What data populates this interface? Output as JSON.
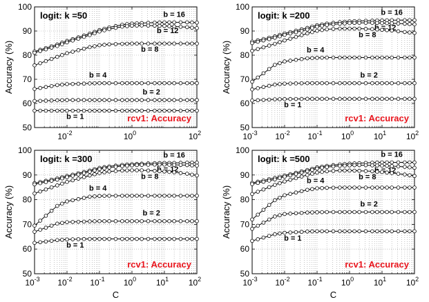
{
  "chart_data": [
    {
      "type": "line",
      "title": "logit: k =50",
      "annotation": "rcv1: Accuracy",
      "ylabel": "Accuracy (%)",
      "xlabel": "",
      "xscale": "log",
      "xlim": [
        0.001,
        100
      ],
      "ylim": [
        50,
        100
      ],
      "grid": true,
      "x_ticks": [
        "10^-2",
        "10^0",
        "10^2"
      ],
      "y_ticks": [
        "50",
        "60",
        "70",
        "80",
        "90",
        "100"
      ],
      "x": [
        0.001,
        0.005,
        0.01,
        0.05,
        0.1,
        0.2,
        0.5,
        1,
        2,
        5,
        10,
        20,
        50,
        100
      ],
      "series": [
        {
          "name": "b = 16",
          "values": [
            81.5,
            84.4,
            85.9,
            88.9,
            90.4,
            91.5,
            92.6,
            93.1,
            93.3,
            93.5,
            93.6,
            93.6,
            93.6,
            93.5
          ]
        },
        {
          "name": "b = 12",
          "values": [
            81.0,
            83.8,
            85.3,
            88.3,
            89.8,
            90.8,
            91.8,
            92.2,
            92.3,
            92.2,
            92.1,
            91.9,
            91.6,
            91.2
          ]
        },
        {
          "name": "b = 8",
          "values": [
            75.8,
            79.3,
            80.8,
            83.3,
            84.1,
            84.5,
            84.7,
            84.8,
            84.8,
            84.8,
            84.8,
            84.8,
            84.8,
            84.8
          ]
        },
        {
          "name": "b = 4",
          "values": [
            66.0,
            67.6,
            68.0,
            68.3,
            68.4,
            68.4,
            68.4,
            68.4,
            68.4,
            68.4,
            68.4,
            68.4,
            68.4,
            68.4
          ]
        },
        {
          "name": "b = 2",
          "values": [
            61.0,
            61.3,
            61.4,
            61.4,
            61.4,
            61.4,
            61.4,
            61.4,
            61.4,
            61.4,
            61.4,
            61.4,
            61.4,
            61.4
          ]
        },
        {
          "name": "b = 1",
          "values": [
            57.0,
            57.0,
            57.0,
            57.0,
            57.0,
            57.0,
            57.0,
            57.0,
            57.0,
            57.0,
            57.0,
            57.0,
            57.0,
            57.0
          ]
        }
      ]
    },
    {
      "type": "line",
      "title": "logit: k =200",
      "annotation": "rcv1: Accuracy",
      "ylabel": "",
      "xlabel": "",
      "xscale": "log",
      "xlim": [
        0.001,
        100
      ],
      "ylim": [
        50,
        100
      ],
      "grid": true,
      "x_ticks": [
        "10^-3",
        "10^-2",
        "10^-1",
        "10^0",
        "10^1",
        "10^2"
      ],
      "y_ticks": [
        "50",
        "60",
        "70",
        "80",
        "90",
        "100"
      ],
      "x": [
        0.001,
        0.005,
        0.01,
        0.05,
        0.1,
        0.2,
        0.5,
        1,
        2,
        5,
        10,
        20,
        50,
        100
      ],
      "series": [
        {
          "name": "b = 16",
          "values": [
            85.6,
            87.8,
            89.0,
            91.3,
            92.4,
            93.1,
            93.7,
            94.0,
            94.2,
            94.3,
            94.4,
            94.5,
            94.5,
            94.5
          ]
        },
        {
          "name": "b = 12",
          "values": [
            85.0,
            87.2,
            88.4,
            90.6,
            91.8,
            92.5,
            93.0,
            93.3,
            93.4,
            93.4,
            93.3,
            93.2,
            93.0,
            92.8
          ]
        },
        {
          "name": "b = 8",
          "values": [
            81.8,
            84.7,
            86.1,
            89.0,
            90.1,
            90.7,
            91.0,
            91.0,
            91.0,
            90.8,
            90.5,
            90.2,
            89.6,
            89.2
          ]
        },
        {
          "name": "b = 4",
          "values": [
            69.0,
            76.0,
            77.4,
            78.7,
            78.9,
            79.0,
            79.0,
            79.0,
            79.0,
            79.0,
            79.0,
            79.0,
            79.0,
            79.0
          ]
        },
        {
          "name": "b = 2",
          "values": [
            65.8,
            67.8,
            68.2,
            68.4,
            68.4,
            68.4,
            68.4,
            68.4,
            68.4,
            68.4,
            68.4,
            68.4,
            68.4,
            68.4
          ]
        },
        {
          "name": "b = 1",
          "values": [
            61.2,
            61.7,
            61.8,
            61.9,
            61.9,
            61.9,
            61.9,
            61.9,
            61.9,
            61.9,
            61.9,
            61.9,
            61.9,
            61.9
          ]
        }
      ]
    },
    {
      "type": "line",
      "title": "logit: k =300",
      "annotation": "rcv1: Accuracy",
      "ylabel": "Accuracy (%)",
      "xlabel": "C",
      "xscale": "log",
      "xlim": [
        0.001,
        100
      ],
      "ylim": [
        50,
        100
      ],
      "grid": true,
      "x_ticks": [
        "10^-3",
        "10^-2",
        "10^-1",
        "10^0",
        "10^1",
        "10^2"
      ],
      "y_ticks": [
        "50",
        "60",
        "70",
        "80",
        "90",
        "100"
      ],
      "x": [
        0.001,
        0.005,
        0.01,
        0.05,
        0.1,
        0.2,
        0.5,
        1,
        2,
        5,
        10,
        20,
        50,
        100
      ],
      "series": [
        {
          "name": "b = 16",
          "values": [
            86.7,
            88.6,
            89.6,
            91.8,
            92.9,
            93.5,
            94.1,
            94.4,
            94.6,
            94.8,
            94.9,
            94.9,
            95.0,
            95.0
          ]
        },
        {
          "name": "b = 12",
          "values": [
            86.2,
            88.1,
            89.1,
            91.3,
            92.4,
            93.0,
            93.6,
            93.9,
            94.1,
            94.2,
            94.2,
            94.1,
            94.0,
            93.8
          ]
        },
        {
          "name": "b = 8",
          "values": [
            82.5,
            85.8,
            87.2,
            89.8,
            90.8,
            91.4,
            91.8,
            91.9,
            91.9,
            91.7,
            91.4,
            91.1,
            90.5,
            89.8
          ]
        },
        {
          "name": "b = 4",
          "values": [
            69.5,
            77.5,
            79.3,
            81.2,
            81.5,
            81.6,
            81.6,
            81.6,
            81.6,
            81.6,
            81.6,
            81.6,
            81.6,
            81.6
          ]
        },
        {
          "name": "b = 2",
          "values": [
            67.0,
            70.3,
            70.9,
            71.2,
            71.3,
            71.3,
            71.3,
            71.3,
            71.3,
            71.3,
            71.3,
            71.3,
            71.3,
            71.3
          ]
        },
        {
          "name": "b = 1",
          "values": [
            62.5,
            63.6,
            63.9,
            64.1,
            64.1,
            64.1,
            64.1,
            64.1,
            64.1,
            64.1,
            64.1,
            64.1,
            64.1,
            64.1
          ]
        }
      ]
    },
    {
      "type": "line",
      "title": "logit: k =500",
      "annotation": "rcv1: Accuracy",
      "ylabel": "",
      "xlabel": "C",
      "xscale": "log",
      "xlim": [
        0.001,
        100
      ],
      "ylim": [
        50,
        100
      ],
      "grid": true,
      "x_ticks": [
        "10^-3",
        "10^-2",
        "10^-1",
        "10^0",
        "10^1",
        "10^2"
      ],
      "y_ticks": [
        "50",
        "60",
        "70",
        "80",
        "90",
        "100"
      ],
      "x": [
        0.001,
        0.005,
        0.01,
        0.05,
        0.1,
        0.2,
        0.5,
        1,
        2,
        5,
        10,
        20,
        50,
        100
      ],
      "series": [
        {
          "name": "b = 16",
          "values": [
            86.8,
            88.8,
            89.8,
            92.0,
            93.1,
            93.7,
            94.3,
            94.6,
            94.8,
            95.0,
            95.1,
            95.1,
            95.1,
            95.1
          ]
        },
        {
          "name": "b = 12",
          "values": [
            86.3,
            88.2,
            89.3,
            91.5,
            92.6,
            93.2,
            93.7,
            93.9,
            94.0,
            93.9,
            93.8,
            93.6,
            93.3,
            92.9
          ]
        },
        {
          "name": "b = 8",
          "values": [
            82.3,
            86.0,
            87.4,
            90.0,
            91.0,
            91.5,
            91.8,
            91.8,
            91.7,
            91.5,
            91.2,
            90.8,
            90.2,
            89.6
          ]
        },
        {
          "name": "b = 4",
          "values": [
            72.0,
            79.8,
            81.8,
            84.0,
            84.6,
            84.8,
            84.9,
            84.9,
            84.9,
            84.9,
            84.9,
            84.9,
            84.9,
            84.9
          ]
        },
        {
          "name": "b = 2",
          "values": [
            68.2,
            73.2,
            74.2,
            74.8,
            74.9,
            75.0,
            75.0,
            75.0,
            75.0,
            75.0,
            75.0,
            75.0,
            75.0,
            75.0
          ]
        },
        {
          "name": "b = 1",
          "values": [
            63.3,
            66.0,
            66.6,
            67.1,
            67.2,
            67.2,
            67.2,
            67.2,
            67.2,
            67.2,
            67.2,
            67.2,
            67.2,
            67.2
          ]
        }
      ]
    }
  ]
}
